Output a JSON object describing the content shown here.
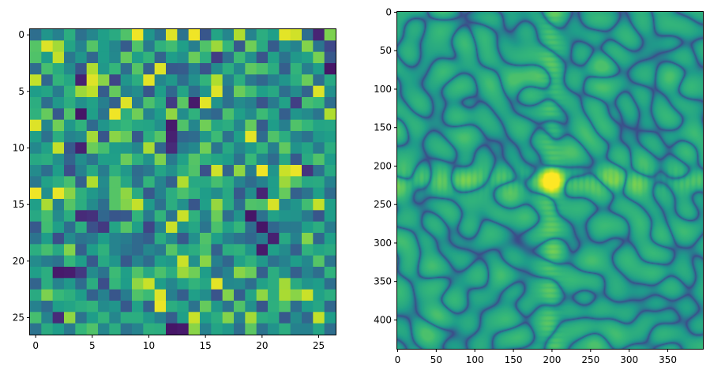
{
  "chart_data": [
    {
      "type": "heatmap",
      "title": "",
      "xlabel": "",
      "ylabel": "",
      "colormap": "viridis",
      "rows": 27,
      "cols": 27,
      "xlim": [
        -0.5,
        26.5
      ],
      "ylim": [
        26.5,
        -0.5
      ],
      "xticks": [
        0,
        5,
        10,
        15,
        20,
        25
      ],
      "yticks": [
        0,
        5,
        10,
        15,
        20,
        25
      ],
      "value_range": [
        0,
        1
      ],
      "values_note_free": true,
      "values": [
        [
          0.36,
          0.52,
          0.44,
          0.62,
          0.37,
          0.46,
          0.56,
          0.61,
          0.72,
          0.98,
          0.52,
          0.38,
          0.95,
          0.38,
          0.98,
          0.27,
          0.58,
          0.46,
          0.88,
          0.45,
          0.62,
          0.56,
          0.96,
          0.93,
          0.36,
          0.1,
          0.8
        ],
        [
          0.73,
          0.95,
          0.86,
          0.58,
          0.45,
          0.73,
          0.55,
          0.46,
          0.29,
          0.72,
          0.41,
          0.64,
          0.69,
          0.56,
          0.43,
          0.72,
          0.85,
          0.66,
          0.28,
          0.78,
          0.61,
          0.29,
          0.51,
          0.45,
          0.81,
          0.39,
          0.22
        ],
        [
          0.72,
          0.55,
          0.91,
          0.4,
          0.52,
          0.33,
          0.55,
          0.47,
          0.76,
          0.56,
          0.65,
          0.32,
          0.55,
          0.5,
          0.77,
          0.63,
          0.18,
          0.37,
          0.68,
          0.5,
          0.26,
          0.57,
          0.38,
          0.53,
          0.57,
          0.79,
          0.28
        ],
        [
          0.35,
          0.7,
          0.61,
          0.48,
          0.27,
          0.88,
          0.53,
          0.66,
          0.36,
          0.73,
          0.31,
          0.95,
          0.28,
          0.29,
          0.44,
          0.26,
          0.48,
          0.62,
          0.47,
          0.75,
          0.71,
          0.62,
          0.3,
          0.65,
          0.43,
          0.55,
          0.06
        ],
        [
          0.91,
          0.33,
          0.65,
          0.59,
          0.09,
          0.95,
          0.82,
          0.21,
          0.52,
          0.62,
          0.96,
          0.46,
          0.53,
          0.36,
          0.5,
          0.65,
          0.88,
          0.44,
          0.62,
          0.4,
          0.33,
          0.43,
          0.52,
          0.62,
          0.77,
          0.36,
          0.6
        ],
        [
          0.55,
          0.58,
          0.42,
          0.65,
          0.85,
          0.9,
          0.29,
          0.76,
          0.44,
          0.49,
          0.27,
          0.55,
          0.33,
          0.58,
          0.35,
          0.52,
          0.95,
          0.38,
          0.77,
          0.69,
          0.56,
          0.6,
          0.36,
          0.48,
          0.32,
          0.95,
          0.5
        ],
        [
          0.62,
          0.36,
          0.53,
          0.62,
          0.5,
          0.57,
          0.43,
          0.31,
          0.95,
          0.42,
          0.71,
          0.61,
          0.18,
          0.74,
          0.07,
          0.96,
          0.51,
          0.37,
          0.48,
          0.43,
          0.26,
          0.41,
          0.57,
          0.19,
          0.7,
          0.67,
          0.36
        ],
        [
          0.64,
          0.76,
          0.28,
          0.72,
          0.06,
          0.56,
          0.38,
          0.98,
          0.63,
          0.78,
          0.45,
          0.55,
          0.83,
          0.49,
          0.64,
          0.38,
          0.33,
          0.71,
          0.56,
          0.48,
          0.68,
          0.58,
          0.3,
          0.52,
          0.48,
          0.39,
          0.88
        ],
        [
          0.95,
          0.46,
          0.78,
          0.53,
          0.64,
          0.34,
          0.52,
          0.61,
          0.66,
          0.59,
          0.58,
          0.5,
          0.07,
          0.72,
          0.46,
          0.78,
          0.59,
          0.62,
          0.46,
          0.76,
          0.29,
          0.55,
          0.43,
          0.72,
          0.66,
          0.58,
          0.59
        ],
        [
          0.56,
          0.37,
          0.62,
          0.45,
          0.48,
          0.86,
          0.27,
          0.82,
          0.76,
          0.28,
          0.62,
          0.73,
          0.09,
          0.33,
          0.35,
          0.53,
          0.68,
          0.37,
          0.56,
          0.96,
          0.35,
          0.72,
          0.62,
          0.45,
          0.38,
          0.53,
          0.56
        ],
        [
          0.47,
          0.57,
          0.91,
          0.28,
          0.09,
          0.77,
          0.7,
          0.55,
          0.53,
          0.46,
          0.87,
          0.33,
          0.12,
          0.42,
          0.47,
          0.78,
          0.39,
          0.6,
          0.46,
          0.54,
          0.65,
          0.43,
          0.75,
          0.51,
          0.58,
          0.42,
          0.62
        ],
        [
          0.6,
          0.62,
          0.5,
          0.32,
          0.49,
          0.39,
          0.56,
          0.56,
          0.77,
          0.63,
          0.51,
          0.8,
          0.41,
          0.57,
          0.73,
          0.63,
          0.58,
          0.55,
          0.38,
          0.67,
          0.47,
          0.35,
          0.6,
          0.28,
          0.61,
          0.72,
          0.55
        ],
        [
          0.48,
          0.36,
          0.55,
          0.24,
          0.44,
          0.6,
          0.42,
          0.63,
          0.53,
          0.35,
          0.4,
          0.58,
          0.5,
          0.63,
          0.72,
          0.25,
          0.93,
          0.32,
          0.83,
          0.42,
          0.98,
          0.52,
          0.92,
          0.97,
          0.15,
          0.37,
          0.6
        ],
        [
          0.4,
          0.57,
          0.62,
          0.7,
          0.31,
          0.88,
          0.48,
          0.73,
          0.59,
          0.37,
          0.65,
          0.45,
          0.31,
          0.88,
          0.6,
          0.6,
          0.7,
          0.62,
          0.45,
          0.35,
          0.44,
          0.55,
          0.85,
          0.72,
          0.6,
          0.61,
          0.44
        ],
        [
          0.98,
          0.5,
          0.97,
          0.82,
          0.63,
          0.53,
          0.46,
          0.73,
          0.83,
          0.61,
          0.28,
          0.44,
          0.62,
          0.71,
          0.64,
          0.55,
          0.49,
          0.6,
          0.28,
          0.49,
          0.1,
          0.55,
          0.76,
          0.31,
          0.38,
          0.56,
          0.35
        ],
        [
          0.56,
          0.87,
          0.44,
          0.73,
          0.62,
          0.48,
          0.36,
          0.73,
          0.81,
          0.91,
          0.54,
          0.37,
          0.62,
          0.5,
          0.27,
          0.56,
          0.84,
          0.61,
          0.36,
          0.72,
          0.71,
          0.94,
          0.46,
          0.52,
          0.69,
          0.91,
          0.56
        ],
        [
          0.6,
          0.7,
          0.48,
          0.62,
          0.12,
          0.14,
          0.33,
          0.27,
          0.28,
          0.65,
          0.41,
          0.65,
          0.38,
          0.92,
          0.64,
          0.44,
          0.77,
          0.36,
          0.51,
          0.06,
          0.37,
          0.57,
          0.52,
          0.51,
          0.41,
          0.27,
          0.55
        ],
        [
          0.28,
          0.69,
          0.56,
          0.36,
          0.62,
          0.25,
          0.17,
          0.58,
          0.73,
          0.56,
          0.21,
          0.45,
          0.92,
          0.52,
          0.59,
          0.39,
          0.71,
          0.57,
          0.66,
          0.36,
          0.06,
          0.33,
          0.41,
          0.41,
          0.56,
          0.62,
          0.42
        ],
        [
          0.38,
          0.55,
          0.24,
          0.48,
          0.38,
          0.41,
          0.55,
          0.45,
          0.42,
          0.34,
          0.3,
          0.61,
          0.48,
          0.28,
          0.5,
          0.72,
          0.56,
          0.44,
          0.38,
          0.33,
          0.42,
          0.09,
          0.6,
          0.44,
          0.81,
          0.33,
          0.56
        ],
        [
          0.62,
          0.7,
          0.6,
          0.81,
          0.3,
          0.55,
          0.64,
          0.45,
          0.39,
          0.34,
          0.46,
          0.41,
          0.73,
          0.58,
          0.62,
          0.7,
          0.31,
          0.62,
          0.64,
          0.52,
          0.07,
          0.56,
          0.48,
          0.3,
          0.64,
          0.58,
          0.61
        ],
        [
          0.48,
          0.42,
          0.38,
          0.66,
          0.55,
          0.28,
          0.6,
          0.52,
          0.28,
          0.45,
          0.35,
          0.56,
          0.53,
          0.92,
          0.5,
          0.82,
          0.43,
          0.33,
          0.57,
          0.64,
          0.53,
          0.37,
          0.44,
          0.55,
          0.47,
          0.73,
          0.39
        ],
        [
          0.56,
          0.62,
          0.07,
          0.08,
          0.17,
          0.48,
          0.38,
          0.68,
          0.56,
          0.72,
          0.6,
          0.71,
          0.62,
          0.85,
          0.78,
          0.55,
          0.36,
          0.45,
          0.82,
          0.77,
          0.3,
          0.62,
          0.5,
          0.3,
          0.45,
          0.36,
          0.64
        ],
        [
          0.32,
          0.62,
          0.45,
          0.53,
          0.35,
          0.62,
          0.24,
          0.66,
          0.55,
          0.83,
          0.92,
          0.55,
          0.46,
          0.57,
          0.65,
          0.59,
          0.96,
          0.47,
          0.48,
          0.36,
          0.57,
          0.62,
          0.86,
          0.61,
          0.52,
          0.55,
          0.36
        ],
        [
          0.61,
          0.8,
          0.67,
          0.63,
          0.55,
          0.31,
          0.44,
          0.27,
          0.42,
          0.72,
          0.68,
          0.95,
          0.43,
          0.3,
          0.56,
          0.49,
          0.26,
          0.81,
          0.3,
          0.58,
          0.83,
          0.62,
          0.87,
          0.82,
          0.92,
          0.57,
          0.62
        ],
        [
          0.44,
          0.35,
          0.56,
          0.58,
          0.62,
          0.65,
          0.48,
          0.52,
          0.28,
          0.57,
          0.31,
          0.97,
          0.62,
          0.58,
          0.38,
          0.76,
          0.53,
          0.38,
          0.72,
          0.5,
          0.27,
          0.63,
          0.71,
          0.36,
          0.55,
          0.59,
          0.33
        ],
        [
          0.7,
          0.45,
          0.12,
          0.83,
          0.38,
          0.55,
          0.65,
          0.46,
          0.62,
          0.62,
          0.53,
          0.44,
          0.3,
          0.56,
          0.92,
          0.55,
          0.62,
          0.81,
          0.44,
          0.86,
          0.62,
          0.6,
          0.28,
          0.48,
          0.33,
          0.91,
          0.55
        ],
        [
          0.38,
          0.61,
          0.55,
          0.41,
          0.66,
          0.72,
          0.46,
          0.62,
          0.38,
          0.45,
          0.63,
          0.62,
          0.06,
          0.07,
          0.82,
          0.44,
          0.58,
          0.53,
          0.36,
          0.74,
          0.38,
          0.51,
          0.62,
          0.44,
          0.44,
          0.58,
          0.36
        ]
      ]
    },
    {
      "type": "heatmap",
      "title": "",
      "xlabel": "",
      "ylabel": "",
      "colormap": "viridis",
      "description_free": true,
      "xlim": [
        -0.5,
        395.5
      ],
      "ylim": [
        437.5,
        -0.5
      ],
      "xticks": [
        0,
        50,
        100,
        150,
        200,
        250,
        300,
        350
      ],
      "yticks": [
        0,
        50,
        100,
        150,
        200,
        250,
        300,
        350,
        400
      ],
      "peak": [
        200,
        219
      ],
      "value_range": [
        0,
        1
      ]
    }
  ],
  "colors": {
    "viridis": [
      "#440154",
      "#482878",
      "#3e4989",
      "#31688e",
      "#26828e",
      "#1f9e89",
      "#35b779",
      "#6ece58",
      "#b5de2b",
      "#fde725"
    ]
  }
}
